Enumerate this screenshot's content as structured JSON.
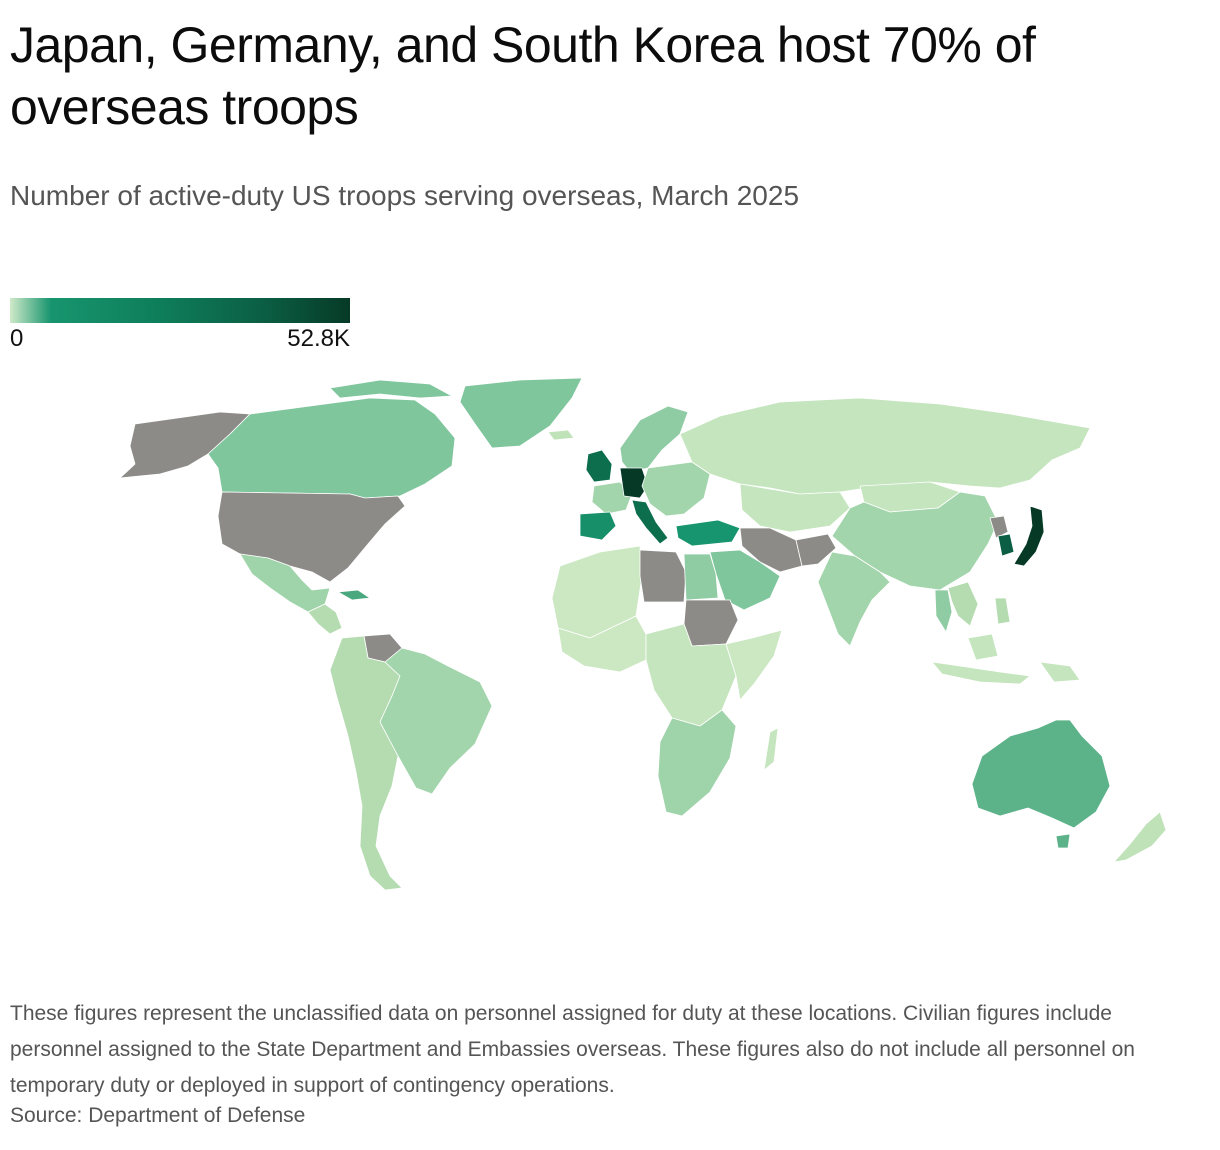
{
  "header": {
    "title": "Japan, Germany, and South Korea host 70% of overseas troops",
    "subtitle": "Number of active-duty US troops serving overseas, March 2025"
  },
  "legend": {
    "min_label": "0",
    "max_label": "52.8K",
    "colors": [
      "#cfe9c9",
      "#17956e",
      "#0b5e43",
      "#063a27"
    ]
  },
  "map": {
    "no_data_color": "#8c8b88",
    "regions": [
      {
        "name": "Alaska",
        "color": "#8c8b88"
      },
      {
        "name": "Canada",
        "color": "#7fc69d"
      },
      {
        "name": "United States",
        "color": "#8c8b88"
      },
      {
        "name": "Mexico",
        "color": "#9fd3a9"
      },
      {
        "name": "Central America",
        "color": "#b4dcb0"
      },
      {
        "name": "Cuba",
        "color": "#4aa87e"
      },
      {
        "name": "South America",
        "color": "#b4dcb0"
      },
      {
        "name": "Brazil",
        "color": "#a2d5ab"
      },
      {
        "name": "Venezuela",
        "color": "#8c8b88"
      },
      {
        "name": "Greenland",
        "color": "#7fc69d"
      },
      {
        "name": "Iceland",
        "color": "#bfe2b9"
      },
      {
        "name": "United Kingdom",
        "color": "#0d6e4d"
      },
      {
        "name": "Germany",
        "color": "#063a27"
      },
      {
        "name": "France",
        "color": "#a2d5ab"
      },
      {
        "name": "Spain",
        "color": "#178f68"
      },
      {
        "name": "Italy",
        "color": "#0d6e4d"
      },
      {
        "name": "Scandinavia",
        "color": "#8fcca3"
      },
      {
        "name": "Eastern Europe",
        "color": "#a2d5ab"
      },
      {
        "name": "Turkey",
        "color": "#17956e"
      },
      {
        "name": "Russia",
        "color": "#c4e5bd"
      },
      {
        "name": "Central Asia",
        "color": "#c4e5bd"
      },
      {
        "name": "Iran",
        "color": "#8c8b88"
      },
      {
        "name": "Afghanistan",
        "color": "#8c8b88"
      },
      {
        "name": "Saudi Arabia",
        "color": "#7fc69d"
      },
      {
        "name": "Egypt",
        "color": "#8fcca3"
      },
      {
        "name": "Libya",
        "color": "#8c8b88"
      },
      {
        "name": "Sudan",
        "color": "#8c8b88"
      },
      {
        "name": "North Africa",
        "color": "#cce8c3"
      },
      {
        "name": "West Africa",
        "color": "#cce8c3"
      },
      {
        "name": "Central Africa",
        "color": "#c4e5bd"
      },
      {
        "name": "East Africa",
        "color": "#cce8c3"
      },
      {
        "name": "Southern Africa",
        "color": "#9fd3a9"
      },
      {
        "name": "Madagascar",
        "color": "#c4e5bd"
      },
      {
        "name": "India",
        "color": "#a2d5ab"
      },
      {
        "name": "China",
        "color": "#a2d5ab"
      },
      {
        "name": "Mongolia",
        "color": "#c4e5bd"
      },
      {
        "name": "Southeast Asia",
        "color": "#b4dcb0"
      },
      {
        "name": "Thailand",
        "color": "#8fcca3"
      },
      {
        "name": "North Korea",
        "color": "#8c8b88"
      },
      {
        "name": "South Korea",
        "color": "#0b5e43"
      },
      {
        "name": "Japan",
        "color": "#063a27"
      },
      {
        "name": "Indonesia",
        "color": "#c4e5bd"
      },
      {
        "name": "Philippines",
        "color": "#b4dcb0"
      },
      {
        "name": "Papua New Guinea",
        "color": "#c4e5bd"
      },
      {
        "name": "Australia",
        "color": "#5cb289"
      },
      {
        "name": "New Zealand",
        "color": "#bfe2b9"
      }
    ]
  },
  "footer": {
    "note": "These figures represent the unclassified data on personnel assigned for duty at these locations. Civilian figures include personnel assigned to the State Department and Embassies overseas. These figures also do not include all personnel on temporary duty or deployed in support of contingency operations.",
    "source": "Source: Department of Defense"
  }
}
